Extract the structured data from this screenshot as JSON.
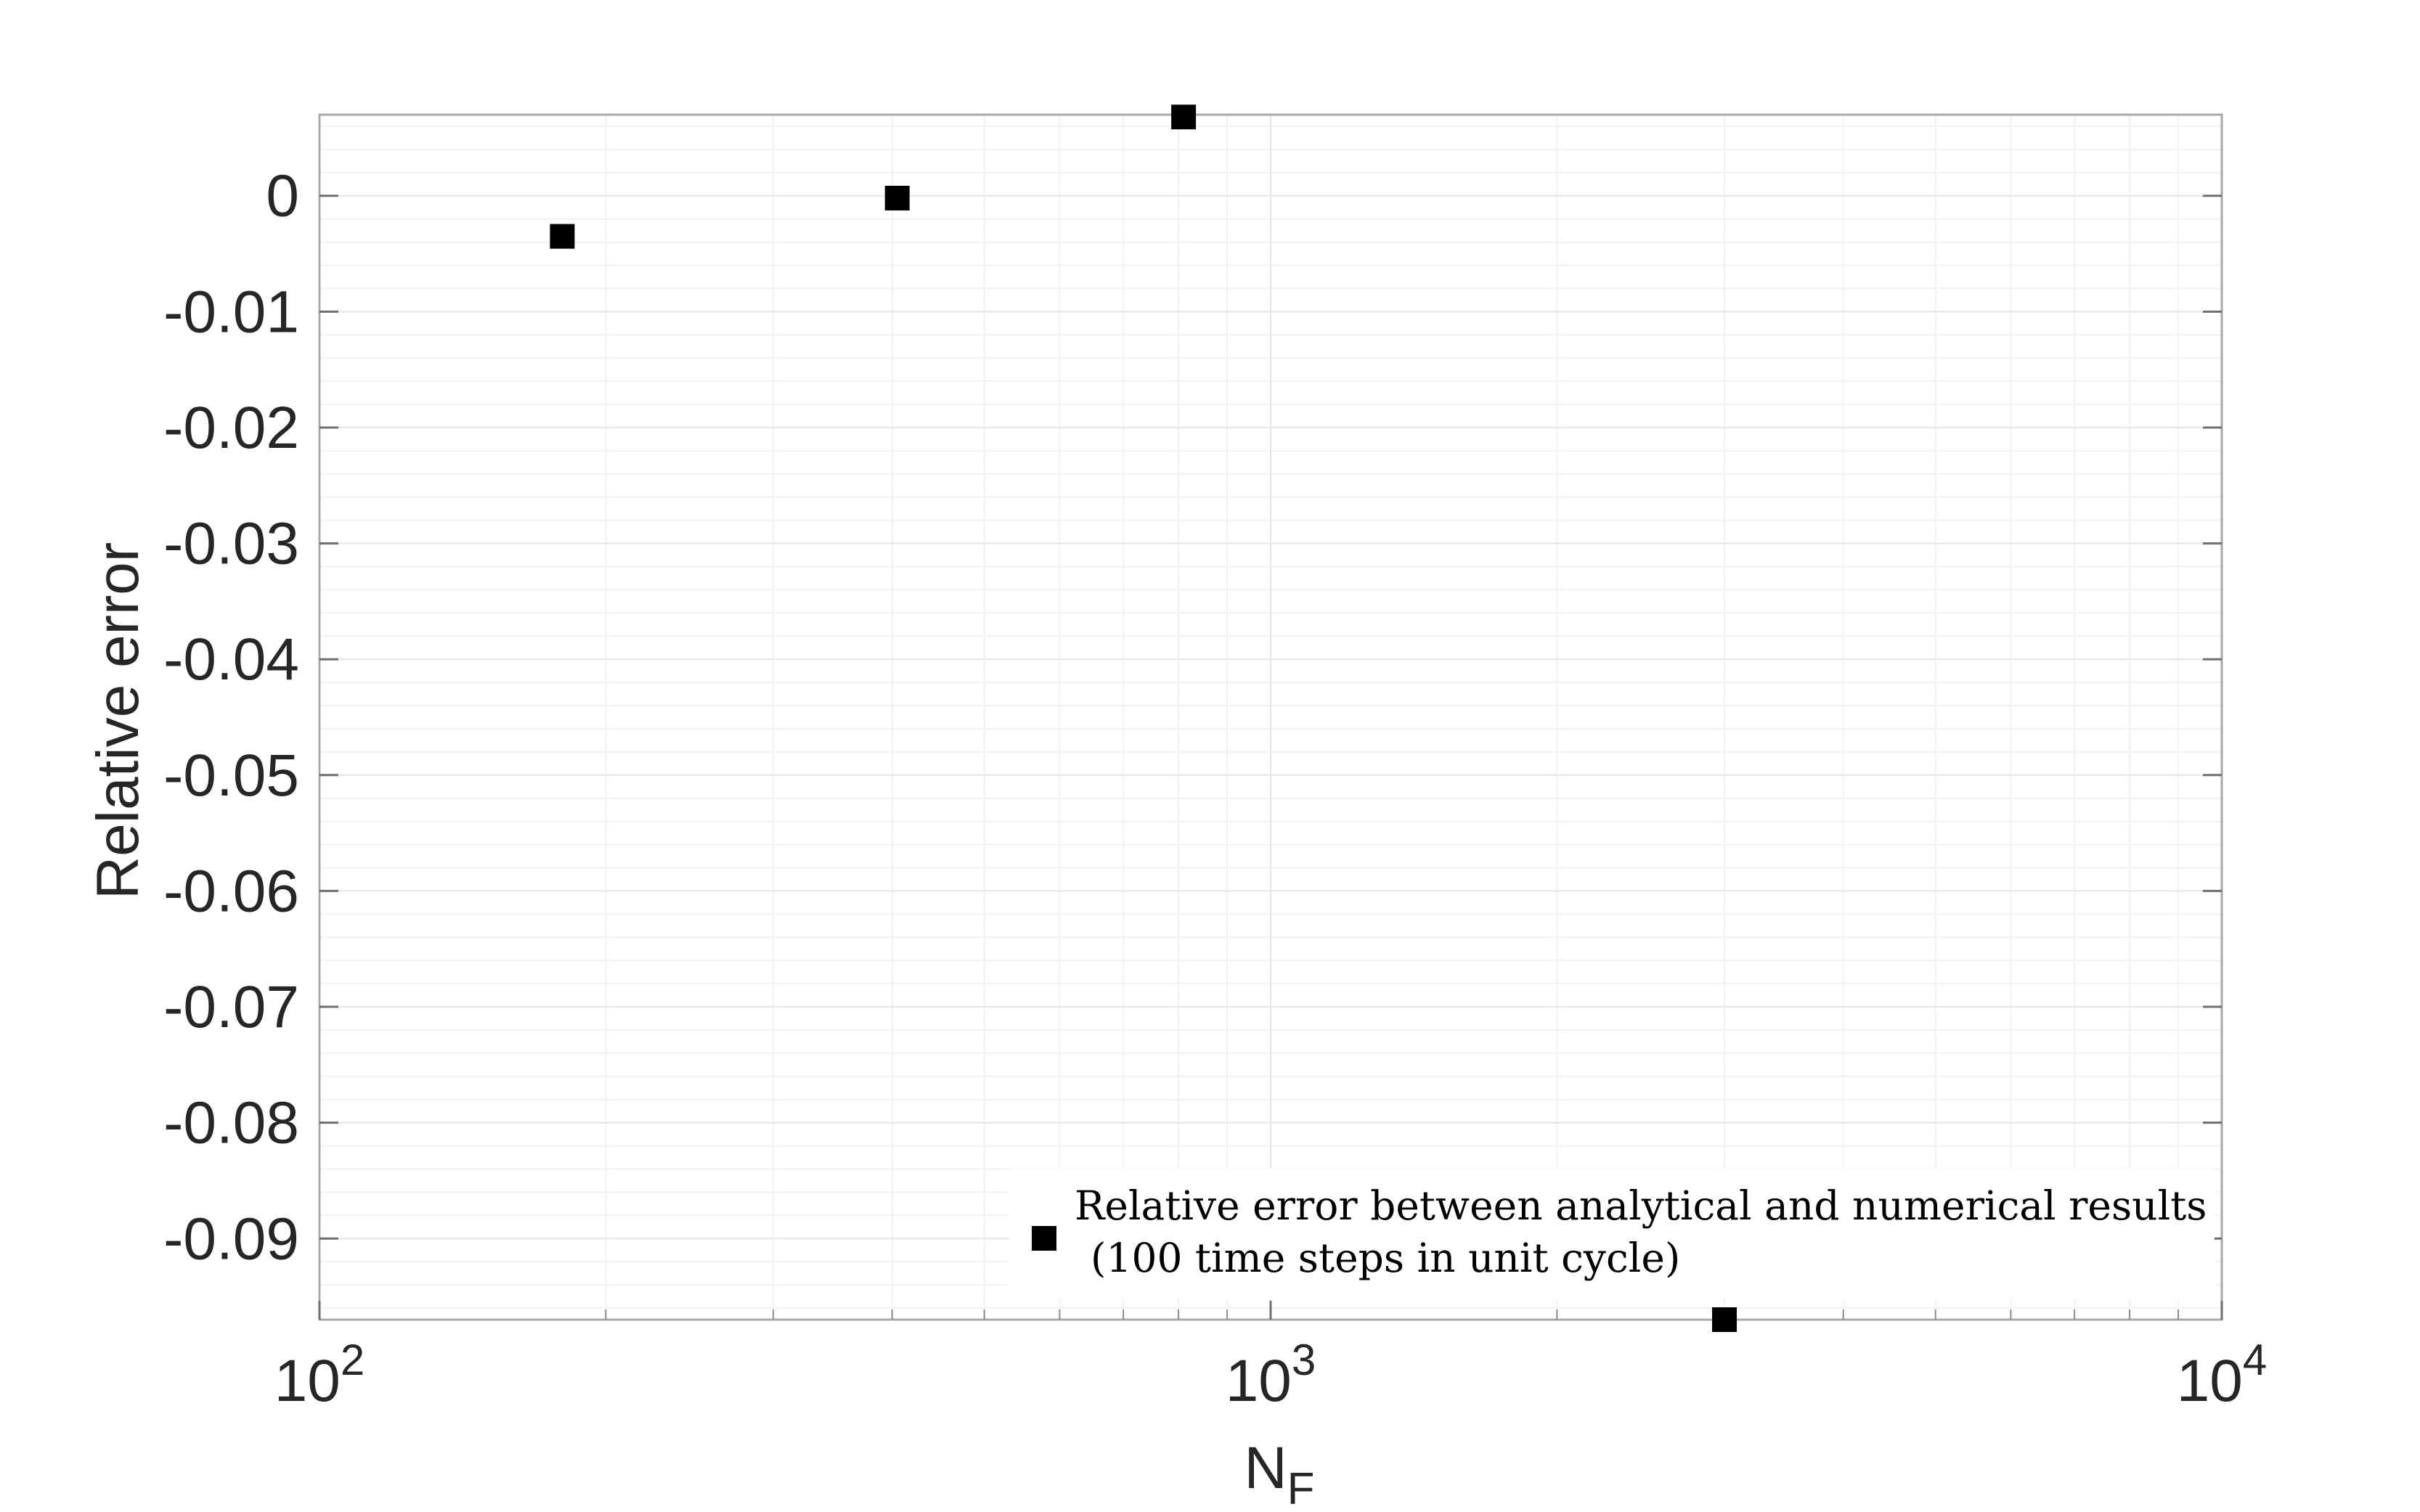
{
  "chart_data": {
    "type": "scatter",
    "x_scale": "log",
    "xlim": [
      100,
      10000
    ],
    "ylim": [
      -0.097,
      0.007
    ],
    "x_ticks": [
      {
        "value": 100,
        "base": "10",
        "exp": "2"
      },
      {
        "value": 1000,
        "base": "10",
        "exp": "3"
      },
      {
        "value": 10000,
        "base": "10",
        "exp": "4"
      }
    ],
    "y_ticks": [
      {
        "value": 0,
        "label": "0"
      },
      {
        "value": -0.01,
        "label": "-0.01"
      },
      {
        "value": -0.02,
        "label": "-0.02"
      },
      {
        "value": -0.03,
        "label": "-0.03"
      },
      {
        "value": -0.04,
        "label": "-0.04"
      },
      {
        "value": -0.05,
        "label": "-0.05"
      },
      {
        "value": -0.06,
        "label": "-0.06"
      },
      {
        "value": -0.07,
        "label": "-0.07"
      },
      {
        "value": -0.08,
        "label": "-0.08"
      },
      {
        "value": -0.09,
        "label": "-0.09"
      }
    ],
    "xlabel": {
      "base": "N",
      "sub": "F"
    },
    "ylabel": "Relative error",
    "grid": true,
    "minor_grid": true,
    "legend_position": "bottom-right",
    "series": [
      {
        "name_line1": "Relative error between analytical and numerical results",
        "name_line2": "(100 time steps in unit cycle)",
        "marker": "square",
        "color": "#000000",
        "points": [
          {
            "x": 180,
            "y": -0.0035
          },
          {
            "x": 405,
            "y": -0.0002
          },
          {
            "x": 810,
            "y": 0.0068
          },
          {
            "x": 3000,
            "y": -0.097
          }
        ]
      }
    ]
  }
}
